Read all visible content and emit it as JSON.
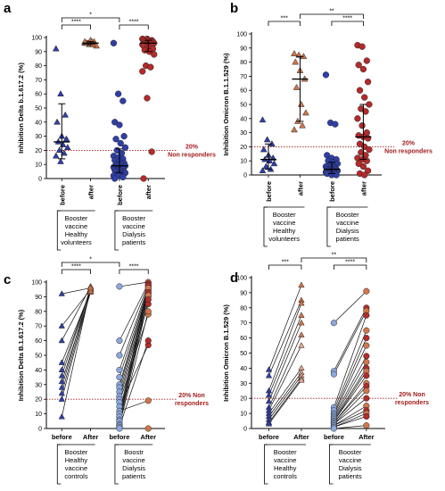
{
  "colors": {
    "before_blue": "#2f3fa8",
    "before_light": "#8ca8dc",
    "after_orange": "#d0774a",
    "after_red": "#b52a2a",
    "after_light": "#e8a38a",
    "threshold": "#a11d1d",
    "paired_line": "#111111",
    "errorbar": "#000000"
  },
  "chart_data": [
    {
      "panel": "a",
      "type": "scatter",
      "ylabel": "Inhibition Delta b.1.617.2 (%)",
      "ylim": [
        0,
        100
      ],
      "yticks": [
        0,
        10,
        20,
        30,
        40,
        50,
        60,
        70,
        80,
        90,
        100
      ],
      "threshold": {
        "value": 20,
        "label_line1": "20%",
        "label_line2": "Non responders"
      },
      "x_tick_labels": [
        "before",
        "after",
        "before",
        "after"
      ],
      "group_labels": [
        [
          "Booster",
          "vaccine",
          "Healthy",
          "volunteers"
        ],
        [
          "Booster",
          "vaccine",
          "Dialysis",
          "patients"
        ]
      ],
      "significance": [
        {
          "from": 0,
          "to": 1,
          "label": "****"
        },
        {
          "from": 0,
          "to": 2,
          "label": "*"
        },
        {
          "from": 2,
          "to": 3,
          "label": "****"
        }
      ],
      "series": [
        {
          "marker": "triangle",
          "color": "before_blue",
          "median": 26,
          "q1": 14,
          "q3": 53,
          "values": [
            92,
            60,
            45,
            40,
            30,
            28,
            26,
            24,
            22,
            20,
            18,
            16,
            12
          ]
        },
        {
          "marker": "triangle",
          "color": "after_orange",
          "median": 96,
          "q1": 95,
          "q3": 97,
          "values": [
            96,
            95,
            97,
            96,
            98,
            95,
            96,
            97,
            94,
            96,
            95,
            97
          ]
        },
        {
          "marker": "circle",
          "color": "before_blue",
          "median": 9,
          "q1": 4,
          "q3": 21,
          "values": [
            96,
            60,
            55,
            40,
            38,
            30,
            28,
            25,
            22,
            20,
            18,
            16,
            15,
            14,
            13,
            12,
            11,
            10,
            10,
            9,
            9,
            8,
            8,
            7,
            7,
            6,
            6,
            5,
            5,
            4,
            4,
            3,
            3,
            2,
            2,
            1,
            0
          ]
        },
        {
          "marker": "circle",
          "color": "after_red",
          "median": 96,
          "q1": 90,
          "q3": 98,
          "values": [
            99,
            99,
            98,
            98,
            98,
            97,
            97,
            97,
            96,
            96,
            96,
            95,
            95,
            94,
            94,
            93,
            92,
            91,
            90,
            88,
            80,
            79,
            76,
            57,
            19,
            0
          ]
        }
      ]
    },
    {
      "panel": "b",
      "type": "scatter",
      "ylabel": "Inhibition Omicron B.1.1.529 (%)",
      "ylim": [
        0,
        100
      ],
      "yticks": [
        0,
        10,
        20,
        30,
        40,
        50,
        60,
        70,
        80,
        90,
        100
      ],
      "threshold": {
        "value": 20,
        "label_line1": "20%",
        "label_line2": "Non responders"
      },
      "x_tick_labels": [
        "before",
        "after",
        "before",
        "after"
      ],
      "group_labels": [
        [
          "Booster",
          "vaccine",
          "Healthy",
          "volunteers"
        ],
        [
          "Booster",
          "vaccine",
          "Dialysis",
          "patients"
        ]
      ],
      "significance": [
        {
          "from": 0,
          "to": 1,
          "label": "***"
        },
        {
          "from": 1,
          "to": 3,
          "label": "**"
        },
        {
          "from": 2,
          "to": 3,
          "label": "****"
        }
      ],
      "series": [
        {
          "marker": "triangle",
          "color": "before_blue",
          "median": 11,
          "q1": 4,
          "q3": 22,
          "values": [
            39,
            25,
            22,
            18,
            14,
            12,
            11,
            10,
            8,
            6,
            4,
            3
          ]
        },
        {
          "marker": "triangle",
          "color": "after_orange",
          "median": 68,
          "q1": 38,
          "q3": 84,
          "values": [
            86,
            85,
            84,
            80,
            74,
            68,
            62,
            50,
            44,
            38,
            35,
            32
          ]
        },
        {
          "marker": "circle",
          "color": "before_blue",
          "median": 4,
          "q1": 1,
          "q3": 9,
          "values": [
            71,
            37,
            36,
            14,
            12,
            11,
            10,
            9,
            8,
            7,
            6,
            6,
            5,
            5,
            4,
            4,
            4,
            3,
            3,
            3,
            2,
            2,
            2,
            1,
            1,
            1,
            0,
            0
          ]
        },
        {
          "marker": "circle",
          "color": "after_red",
          "median": 27,
          "q1": 11,
          "q3": 50,
          "values": [
            92,
            91,
            81,
            78,
            75,
            66,
            60,
            55,
            50,
            47,
            45,
            40,
            35,
            30,
            28,
            27,
            26,
            22,
            20,
            18,
            16,
            14,
            12,
            11,
            10,
            8,
            6,
            3,
            1,
            0
          ]
        }
      ]
    },
    {
      "panel": "c",
      "type": "paired",
      "ylabel": "Inhibition Delta B.1.617.2 (%)",
      "ylim": [
        0,
        100
      ],
      "yticks": [
        0,
        10,
        20,
        30,
        40,
        50,
        60,
        70,
        80,
        90,
        100
      ],
      "threshold": {
        "value": 20,
        "label_line1": "20% Non",
        "label_line2": "responders"
      },
      "x_tick_labels": [
        "before",
        "After",
        "before",
        "After"
      ],
      "group_labels": [
        [
          "Booster",
          "Healthy",
          "vaccine",
          "controls"
        ],
        [
          "Boostr",
          "vaccine",
          "Dialysis",
          "patients"
        ]
      ],
      "significance": [
        {
          "from": 0,
          "to": 1,
          "label": "****"
        },
        {
          "from": 0,
          "to": 2,
          "label": "*"
        },
        {
          "from": 2,
          "to": 3,
          "label": "****"
        }
      ],
      "groups": [
        {
          "marker": "triangle",
          "before": [
            92,
            70,
            60,
            45,
            40,
            36,
            32,
            28,
            24,
            20,
            8
          ],
          "after": [
            96,
            95,
            97,
            94,
            95,
            96,
            93,
            97,
            95,
            94,
            96
          ]
        },
        {
          "marker": "circle",
          "before": [
            97,
            60,
            50,
            40,
            35,
            30,
            28,
            25,
            22,
            20,
            18,
            15,
            12,
            10,
            8,
            6,
            5,
            3,
            2,
            1,
            0
          ],
          "after": [
            100,
            99,
            98,
            97,
            96,
            95,
            94,
            92,
            90,
            85,
            78,
            57,
            19,
            98,
            96,
            93,
            91,
            88,
            80,
            60,
            0
          ]
        }
      ]
    },
    {
      "panel": "d",
      "type": "paired",
      "ylabel": "Inhibition Omicron B.1.529 (%)",
      "ylim": [
        0,
        100
      ],
      "yticks": [
        0,
        10,
        20,
        30,
        40,
        50,
        60,
        70,
        80,
        90,
        100
      ],
      "threshold": {
        "value": 20,
        "label_line1": "20% Non",
        "label_line2": "responders"
      },
      "x_tick_labels": [
        "before",
        "After",
        "before",
        "After"
      ],
      "group_labels": [
        [
          "Booster",
          "vaccine",
          "Healthy",
          "controls"
        ],
        [
          "Booster",
          "vaccine",
          "Dialysis",
          "patients"
        ]
      ],
      "significance": [
        {
          "from": 0,
          "to": 1,
          "label": "***"
        },
        {
          "from": 1,
          "to": 3,
          "label": "**"
        },
        {
          "from": 2,
          "to": 3,
          "label": "****"
        }
      ],
      "groups": [
        {
          "marker": "triangle",
          "before": [
            39,
            35,
            25,
            22,
            18,
            14,
            12,
            10,
            8,
            6,
            4,
            3
          ],
          "after": [
            95,
            85,
            83,
            75,
            70,
            62,
            55,
            40,
            37,
            35,
            33,
            32
          ]
        },
        {
          "marker": "circle",
          "before": [
            70,
            38,
            36,
            14,
            12,
            10,
            9,
            8,
            7,
            6,
            5,
            5,
            4,
            4,
            3,
            3,
            2,
            2,
            1,
            1,
            0
          ],
          "after": [
            91,
            80,
            78,
            75,
            65,
            60,
            55,
            48,
            44,
            40,
            38,
            35,
            30,
            28,
            25,
            20,
            15,
            12,
            10,
            8,
            2
          ]
        }
      ]
    }
  ]
}
